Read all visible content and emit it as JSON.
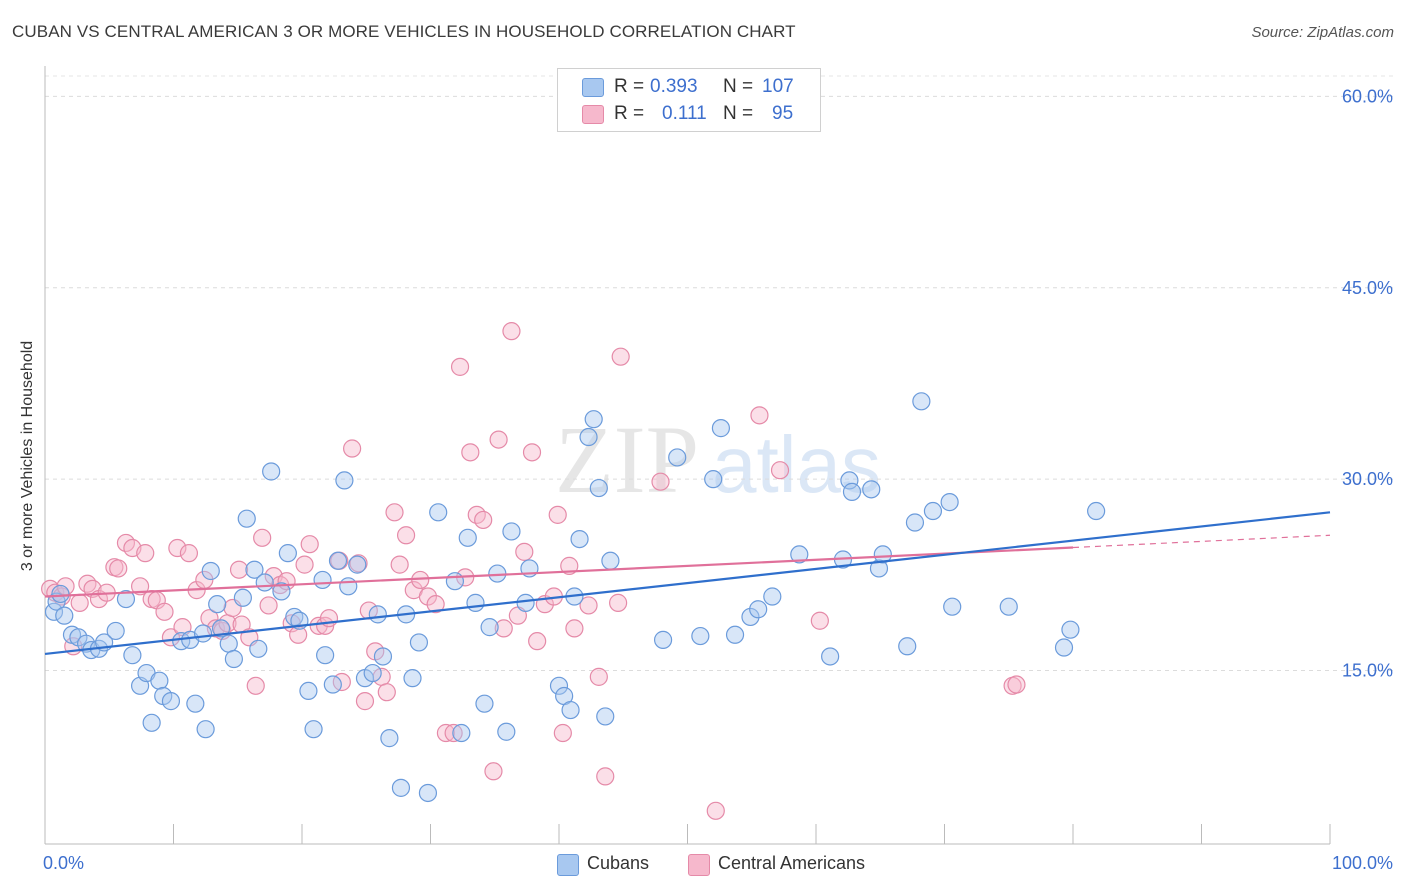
{
  "title": "CUBAN VS CENTRAL AMERICAN 3 OR MORE VEHICLES IN HOUSEHOLD CORRELATION CHART",
  "source": "Source: ZipAtlas.com",
  "watermark": {
    "zip": "ZIP",
    "atlas": "atlas"
  },
  "legend": {
    "r_label": "R =",
    "n_label": "N =",
    "rows": [
      {
        "r": "0.393",
        "n": "107"
      },
      {
        "r": "0.111",
        "n": "95"
      }
    ]
  },
  "colors": {
    "blue_fill": "#a8c8f0",
    "blue_stroke": "#6b9bdb",
    "blue_line": "#2f6fcc",
    "pink_fill": "#f6b8cc",
    "pink_stroke": "#e58aa8",
    "pink_line": "#e0709a",
    "tick_text": "#3d6fce"
  },
  "chart_data": {
    "type": "scatter",
    "xlabel": "",
    "ylabel": "3 or more Vehicles in Household",
    "xlim": [
      0,
      100
    ],
    "ylim": [
      1.4,
      61.6
    ],
    "x_tick_labels": [
      "0.0%",
      "100.0%"
    ],
    "y_ticks": [
      15,
      30,
      45,
      60
    ],
    "y_tick_labels": [
      "15.0%",
      "30.0%",
      "45.0%",
      "60.0%"
    ],
    "grid": true,
    "legend_position": "bottom",
    "series": [
      {
        "name": "Cubans",
        "trend": {
          "x0": 0,
          "y0": 16.3,
          "x1": 100,
          "y1": 27.4,
          "dashed_from": null
        },
        "points": [
          [
            0.7,
            19.6
          ],
          [
            0.9,
            20.4
          ],
          [
            1.2,
            21.0
          ],
          [
            1.5,
            19.3
          ],
          [
            2.1,
            17.8
          ],
          [
            2.6,
            17.6
          ],
          [
            3.2,
            17.1
          ],
          [
            3.6,
            16.6
          ],
          [
            4.2,
            16.7
          ],
          [
            4.6,
            17.2
          ],
          [
            5.5,
            18.1
          ],
          [
            6.3,
            20.6
          ],
          [
            6.8,
            16.2
          ],
          [
            7.4,
            13.8
          ],
          [
            7.9,
            14.8
          ],
          [
            8.3,
            10.9
          ],
          [
            8.9,
            14.2
          ],
          [
            9.2,
            13.0
          ],
          [
            9.8,
            12.6
          ],
          [
            10.6,
            17.3
          ],
          [
            11.3,
            17.4
          ],
          [
            11.7,
            12.4
          ],
          [
            12.3,
            17.9
          ],
          [
            12.5,
            10.4
          ],
          [
            12.9,
            22.8
          ],
          [
            13.4,
            20.2
          ],
          [
            13.7,
            18.3
          ],
          [
            14.3,
            17.1
          ],
          [
            14.7,
            15.9
          ],
          [
            15.4,
            20.7
          ],
          [
            15.7,
            26.9
          ],
          [
            16.3,
            22.9
          ],
          [
            16.6,
            16.7
          ],
          [
            17.1,
            21.9
          ],
          [
            17.6,
            30.6
          ],
          [
            18.4,
            21.2
          ],
          [
            18.9,
            24.2
          ],
          [
            19.4,
            19.2
          ],
          [
            19.8,
            18.9
          ],
          [
            20.5,
            13.4
          ],
          [
            20.9,
            10.4
          ],
          [
            21.6,
            22.1
          ],
          [
            21.8,
            16.2
          ],
          [
            22.4,
            13.9
          ],
          [
            22.8,
            23.6
          ],
          [
            23.3,
            29.9
          ],
          [
            23.6,
            21.6
          ],
          [
            24.3,
            23.3
          ],
          [
            24.9,
            14.4
          ],
          [
            25.5,
            14.8
          ],
          [
            25.9,
            19.4
          ],
          [
            26.3,
            16.1
          ],
          [
            26.8,
            9.7
          ],
          [
            27.7,
            5.8
          ],
          [
            28.1,
            19.4
          ],
          [
            28.6,
            14.4
          ],
          [
            29.1,
            17.2
          ],
          [
            29.8,
            5.4
          ],
          [
            30.6,
            27.4
          ],
          [
            31.9,
            22.0
          ],
          [
            32.4,
            10.1
          ],
          [
            32.9,
            25.4
          ],
          [
            33.5,
            20.3
          ],
          [
            34.2,
            12.4
          ],
          [
            34.6,
            18.4
          ],
          [
            35.2,
            22.6
          ],
          [
            35.9,
            10.2
          ],
          [
            36.3,
            25.9
          ],
          [
            37.4,
            20.3
          ],
          [
            37.7,
            23.0
          ],
          [
            40.0,
            13.8
          ],
          [
            40.4,
            13.0
          ],
          [
            40.9,
            11.9
          ],
          [
            41.2,
            20.8
          ],
          [
            41.6,
            25.3
          ],
          [
            42.3,
            33.3
          ],
          [
            42.7,
            34.7
          ],
          [
            43.1,
            29.3
          ],
          [
            43.6,
            11.4
          ],
          [
            44.0,
            23.6
          ],
          [
            48.1,
            17.4
          ],
          [
            49.2,
            31.7
          ],
          [
            51.0,
            17.7
          ],
          [
            52.0,
            30.0
          ],
          [
            52.6,
            34.0
          ],
          [
            53.7,
            17.8
          ],
          [
            54.9,
            19.2
          ],
          [
            55.5,
            19.8
          ],
          [
            56.6,
            20.8
          ],
          [
            58.7,
            24.1
          ],
          [
            61.1,
            16.1
          ],
          [
            62.1,
            23.7
          ],
          [
            62.6,
            29.9
          ],
          [
            62.8,
            29.0
          ],
          [
            64.3,
            29.2
          ],
          [
            64.9,
            23.0
          ],
          [
            65.2,
            24.1
          ],
          [
            67.1,
            16.9
          ],
          [
            67.7,
            26.6
          ],
          [
            68.2,
            36.1
          ],
          [
            69.1,
            27.5
          ],
          [
            70.4,
            28.2
          ],
          [
            70.6,
            20.0
          ],
          [
            75.0,
            20.0
          ],
          [
            79.3,
            16.8
          ],
          [
            79.8,
            18.2
          ],
          [
            81.8,
            27.5
          ]
        ]
      },
      {
        "name": "Central Americans",
        "trend": {
          "x0": 0,
          "y0": 20.8,
          "x1": 100,
          "y1": 25.6,
          "dashed_from": 80
        },
        "points": [
          [
            0.4,
            21.4
          ],
          [
            0.8,
            21.1
          ],
          [
            1.3,
            20.8
          ],
          [
            1.6,
            21.6
          ],
          [
            2.2,
            16.9
          ],
          [
            2.7,
            20.3
          ],
          [
            3.3,
            21.8
          ],
          [
            3.7,
            21.4
          ],
          [
            4.2,
            20.6
          ],
          [
            4.8,
            21.1
          ],
          [
            5.4,
            23.1
          ],
          [
            5.7,
            23.0
          ],
          [
            6.3,
            25.0
          ],
          [
            6.8,
            24.6
          ],
          [
            7.4,
            21.6
          ],
          [
            7.8,
            24.2
          ],
          [
            8.3,
            20.6
          ],
          [
            8.7,
            20.5
          ],
          [
            9.3,
            19.6
          ],
          [
            9.8,
            17.6
          ],
          [
            10.3,
            24.6
          ],
          [
            10.7,
            18.4
          ],
          [
            11.2,
            24.2
          ],
          [
            11.8,
            21.3
          ],
          [
            12.4,
            22.1
          ],
          [
            12.8,
            19.1
          ],
          [
            13.3,
            18.3
          ],
          [
            13.8,
            18.1
          ],
          [
            14.2,
            18.7
          ],
          [
            14.6,
            19.9
          ],
          [
            15.1,
            22.9
          ],
          [
            15.3,
            18.6
          ],
          [
            15.9,
            17.6
          ],
          [
            16.4,
            13.8
          ],
          [
            16.9,
            25.4
          ],
          [
            17.4,
            20.1
          ],
          [
            17.8,
            22.4
          ],
          [
            18.3,
            21.7
          ],
          [
            18.8,
            22.0
          ],
          [
            19.2,
            18.7
          ],
          [
            19.7,
            17.8
          ],
          [
            20.2,
            23.3
          ],
          [
            20.6,
            24.9
          ],
          [
            21.3,
            18.5
          ],
          [
            21.8,
            18.5
          ],
          [
            22.1,
            19.1
          ],
          [
            22.9,
            23.6
          ],
          [
            23.1,
            14.1
          ],
          [
            23.9,
            32.4
          ],
          [
            24.4,
            23.4
          ],
          [
            24.9,
            12.6
          ],
          [
            25.2,
            19.7
          ],
          [
            25.7,
            16.5
          ],
          [
            26.2,
            14.5
          ],
          [
            26.6,
            13.3
          ],
          [
            27.2,
            27.4
          ],
          [
            27.6,
            23.3
          ],
          [
            28.1,
            25.6
          ],
          [
            28.7,
            21.3
          ],
          [
            29.2,
            22.1
          ],
          [
            29.8,
            20.8
          ],
          [
            30.4,
            20.2
          ],
          [
            31.2,
            10.1
          ],
          [
            31.8,
            10.1
          ],
          [
            32.3,
            38.8
          ],
          [
            32.7,
            22.3
          ],
          [
            33.1,
            32.1
          ],
          [
            33.6,
            27.2
          ],
          [
            34.1,
            26.8
          ],
          [
            34.9,
            7.1
          ],
          [
            35.3,
            33.1
          ],
          [
            35.7,
            18.3
          ],
          [
            36.3,
            41.6
          ],
          [
            36.8,
            19.3
          ],
          [
            37.3,
            24.3
          ],
          [
            37.9,
            32.1
          ],
          [
            38.3,
            17.3
          ],
          [
            38.9,
            20.2
          ],
          [
            39.6,
            20.8
          ],
          [
            39.9,
            27.2
          ],
          [
            40.3,
            10.1
          ],
          [
            40.8,
            23.2
          ],
          [
            41.2,
            18.3
          ],
          [
            42.3,
            20.1
          ],
          [
            43.1,
            14.5
          ],
          [
            43.6,
            6.7
          ],
          [
            44.6,
            20.3
          ],
          [
            44.8,
            39.6
          ],
          [
            47.9,
            29.8
          ],
          [
            52.2,
            4.0
          ],
          [
            55.6,
            35.0
          ],
          [
            57.2,
            30.7
          ],
          [
            60.3,
            18.9
          ],
          [
            75.3,
            13.8
          ],
          [
            75.6,
            13.9
          ]
        ]
      }
    ]
  }
}
